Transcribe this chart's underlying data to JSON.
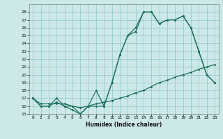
{
  "title": "",
  "xlabel": "Humidex (Indice chaleur)",
  "bg_color": "#cce8e8",
  "grid_color": "#99cccc",
  "line_color": "#1a6b5a",
  "ylim": [
    15,
    29
  ],
  "xlim": [
    -0.5,
    23.5
  ],
  "yticks": [
    15,
    16,
    17,
    18,
    19,
    20,
    21,
    22,
    23,
    24,
    25,
    26,
    27,
    28
  ],
  "xticks": [
    0,
    1,
    2,
    3,
    4,
    5,
    6,
    7,
    8,
    9,
    10,
    11,
    12,
    13,
    14,
    15,
    16,
    17,
    18,
    19,
    20,
    21,
    22,
    23
  ],
  "line1_x": [
    0,
    1,
    2,
    3,
    4,
    5,
    6,
    7,
    8,
    9,
    10,
    11,
    12,
    13,
    14,
    15,
    16,
    17,
    18,
    19,
    20,
    21,
    22,
    23
  ],
  "line1_y": [
    17,
    16,
    16,
    17,
    16,
    16,
    15,
    16,
    16,
    16,
    19,
    22.5,
    25,
    25.5,
    28,
    28,
    26.5,
    27,
    27,
    27.5,
    26,
    23,
    20,
    19
  ],
  "line2_x": [
    0,
    1,
    2,
    3,
    4,
    5,
    6,
    7,
    8,
    9,
    10,
    11,
    12,
    13,
    14,
    15,
    16,
    17,
    18,
    19,
    20,
    21,
    22,
    23
  ],
  "line2_y": [
    17,
    16,
    16,
    16.5,
    16,
    15.5,
    15,
    16,
    18,
    16,
    19,
    22.5,
    25,
    26,
    28,
    28,
    26.5,
    27,
    27,
    27.5,
    26,
    23,
    20,
    19
  ],
  "line3_x": [
    0,
    1,
    2,
    3,
    4,
    5,
    6,
    7,
    8,
    9,
    10,
    11,
    12,
    13,
    14,
    15,
    16,
    17,
    18,
    19,
    20,
    21,
    22,
    23
  ],
  "line3_y": [
    17,
    16.3,
    16.3,
    16.3,
    16.3,
    16.0,
    15.8,
    16.0,
    16.3,
    16.5,
    16.7,
    17.0,
    17.3,
    17.7,
    18.0,
    18.5,
    19.0,
    19.3,
    19.7,
    20.0,
    20.3,
    20.7,
    21.0,
    21.3
  ]
}
